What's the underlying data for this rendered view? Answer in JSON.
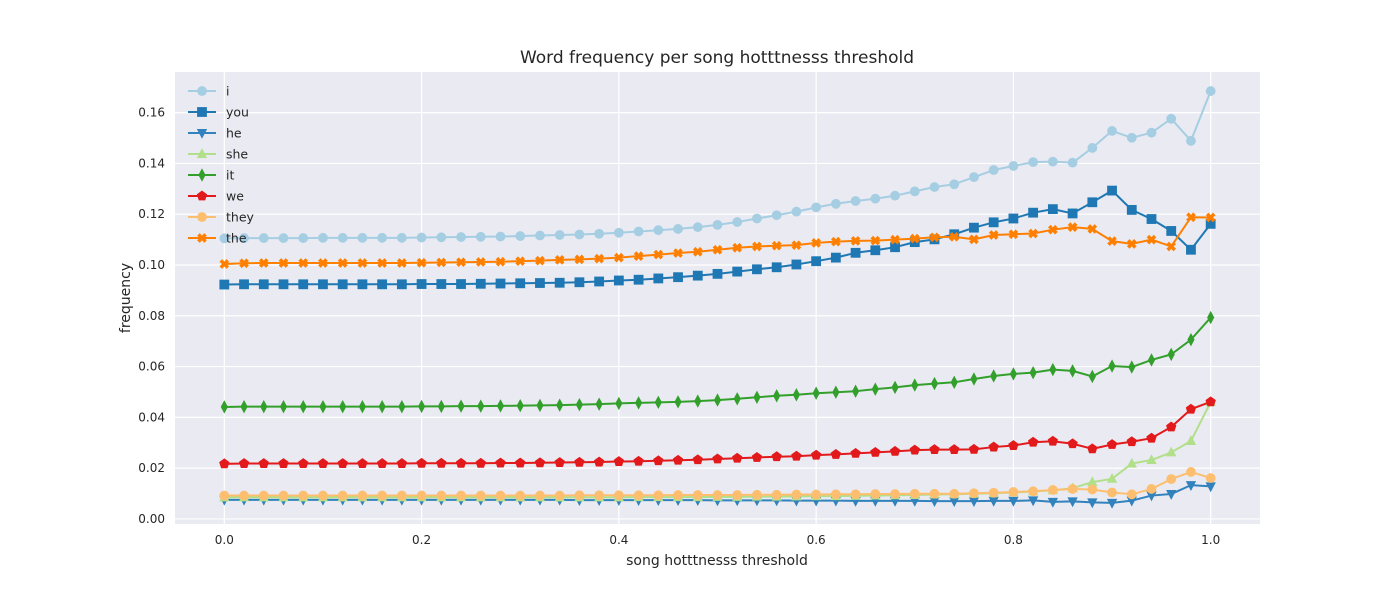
{
  "chart_data": {
    "type": "line",
    "title": "Word frequency per song hotttnesss threshold",
    "xlabel": "song hotttnesss threshold",
    "ylabel": "frequency",
    "xlim": [
      -0.05,
      1.05
    ],
    "ylim": [
      -0.002,
      0.176
    ],
    "xticks": [
      0.0,
      0.2,
      0.4,
      0.6,
      0.8,
      1.0
    ],
    "xtick_labels": [
      "0.0",
      "0.2",
      "0.4",
      "0.6",
      "0.8",
      "1.0"
    ],
    "yticks": [
      0.0,
      0.02,
      0.04,
      0.06,
      0.08,
      0.1,
      0.12,
      0.14,
      0.16
    ],
    "ytick_labels": [
      "0.00",
      "0.02",
      "0.04",
      "0.06",
      "0.08",
      "0.10",
      "0.12",
      "0.14",
      "0.16"
    ],
    "grid": true,
    "legend_position": "top-left",
    "background": "#eaeaf2",
    "x": [
      0.0,
      0.02,
      0.04,
      0.06,
      0.08,
      0.1,
      0.12,
      0.14,
      0.16,
      0.18,
      0.2,
      0.22,
      0.24,
      0.26,
      0.28,
      0.3,
      0.32,
      0.34,
      0.36,
      0.38,
      0.4,
      0.42,
      0.44,
      0.46,
      0.48,
      0.5,
      0.52,
      0.54,
      0.56,
      0.58,
      0.6,
      0.62,
      0.64,
      0.66,
      0.68,
      0.7,
      0.72,
      0.74,
      0.76,
      0.78,
      0.8,
      0.82,
      0.84,
      0.86,
      0.88,
      0.9,
      0.92,
      0.94,
      0.96,
      0.98,
      1.0
    ],
    "series": [
      {
        "name": "i",
        "color": "#a6cee3",
        "marker": "circle",
        "values": [
          0.1105,
          0.1106,
          0.1106,
          0.1106,
          0.1106,
          0.1107,
          0.1107,
          0.1107,
          0.1107,
          0.1107,
          0.1108,
          0.1109,
          0.111,
          0.1111,
          0.1112,
          0.1114,
          0.1116,
          0.1118,
          0.112,
          0.1123,
          0.1127,
          0.1132,
          0.1137,
          0.1142,
          0.1149,
          0.1158,
          0.1169,
          0.1183,
          0.1196,
          0.121,
          0.1227,
          0.1241,
          0.1252,
          0.1261,
          0.1273,
          0.129,
          0.1307,
          0.1318,
          0.1346,
          0.1374,
          0.139,
          0.1405,
          0.1407,
          0.1403,
          0.1461,
          0.1528,
          0.1501,
          0.1521,
          0.1576,
          0.1489,
          0.1685
        ]
      },
      {
        "name": "you",
        "color": "#1f78b4",
        "marker": "square",
        "values": [
          0.0923,
          0.0924,
          0.0924,
          0.0924,
          0.0924,
          0.0924,
          0.0924,
          0.0924,
          0.0924,
          0.0924,
          0.0925,
          0.0925,
          0.0925,
          0.0926,
          0.0927,
          0.0928,
          0.0929,
          0.093,
          0.0932,
          0.0935,
          0.0939,
          0.0942,
          0.0947,
          0.0952,
          0.0958,
          0.0965,
          0.0974,
          0.0983,
          0.0991,
          0.1002,
          0.1015,
          0.1029,
          0.1048,
          0.1058,
          0.107,
          0.109,
          0.1101,
          0.1121,
          0.1147,
          0.1168,
          0.1183,
          0.1206,
          0.122,
          0.1203,
          0.1247,
          0.1293,
          0.1217,
          0.1181,
          0.1134,
          0.106,
          0.1162
        ]
      },
      {
        "name": "he",
        "color": "#3182bd",
        "marker": "triangle-down",
        "values": [
          0.0075,
          0.0075,
          0.0075,
          0.0075,
          0.0075,
          0.0075,
          0.0075,
          0.0075,
          0.0075,
          0.0075,
          0.0075,
          0.0075,
          0.0075,
          0.0075,
          0.0075,
          0.0075,
          0.0075,
          0.0075,
          0.0074,
          0.0074,
          0.0074,
          0.0074,
          0.0074,
          0.0074,
          0.0074,
          0.0073,
          0.0073,
          0.0073,
          0.0073,
          0.0072,
          0.0072,
          0.0072,
          0.0071,
          0.0071,
          0.0071,
          0.0071,
          0.007,
          0.007,
          0.007,
          0.0071,
          0.0071,
          0.0073,
          0.0067,
          0.0069,
          0.0065,
          0.0063,
          0.0072,
          0.0092,
          0.0098,
          0.0133,
          0.0128
        ]
      },
      {
        "name": "she",
        "color": "#b2df8a",
        "marker": "triangle-up",
        "values": [
          0.0085,
          0.0085,
          0.0085,
          0.0085,
          0.0085,
          0.0085,
          0.0085,
          0.0085,
          0.0085,
          0.0085,
          0.0085,
          0.0085,
          0.0085,
          0.0085,
          0.0085,
          0.0085,
          0.0085,
          0.0085,
          0.0085,
          0.0085,
          0.0085,
          0.0086,
          0.0086,
          0.0086,
          0.0086,
          0.0087,
          0.0087,
          0.0088,
          0.0088,
          0.0089,
          0.009,
          0.009,
          0.0091,
          0.0092,
          0.0093,
          0.0094,
          0.0096,
          0.0097,
          0.0099,
          0.0101,
          0.0104,
          0.0108,
          0.0113,
          0.0121,
          0.0145,
          0.0158,
          0.0218,
          0.0232,
          0.0262,
          0.0307,
          0.046
        ]
      },
      {
        "name": "it",
        "color": "#33a02c",
        "marker": "diamond",
        "values": [
          0.0441,
          0.0442,
          0.0442,
          0.0442,
          0.0442,
          0.0442,
          0.0442,
          0.0442,
          0.0442,
          0.0442,
          0.0443,
          0.0443,
          0.0444,
          0.0444,
          0.0445,
          0.0446,
          0.0447,
          0.0448,
          0.045,
          0.0452,
          0.0455,
          0.0457,
          0.0459,
          0.0461,
          0.0464,
          0.0468,
          0.0473,
          0.0479,
          0.0485,
          0.0489,
          0.0495,
          0.0499,
          0.0503,
          0.0511,
          0.0518,
          0.0527,
          0.0533,
          0.0538,
          0.0551,
          0.0563,
          0.0571,
          0.0576,
          0.0588,
          0.0583,
          0.0561,
          0.0602,
          0.0598,
          0.0626,
          0.0648,
          0.0706,
          0.0793
        ]
      },
      {
        "name": "we",
        "color": "#e31a1c",
        "marker": "pentagon",
        "values": [
          0.0217,
          0.0218,
          0.0218,
          0.0218,
          0.0218,
          0.0218,
          0.0218,
          0.0218,
          0.0218,
          0.0218,
          0.0219,
          0.0219,
          0.0219,
          0.0219,
          0.022,
          0.022,
          0.0221,
          0.0222,
          0.0223,
          0.0224,
          0.0226,
          0.0227,
          0.0229,
          0.0231,
          0.0233,
          0.0236,
          0.0239,
          0.0242,
          0.0245,
          0.0247,
          0.0251,
          0.0254,
          0.0258,
          0.0262,
          0.0266,
          0.0271,
          0.0273,
          0.0273,
          0.0274,
          0.0283,
          0.0289,
          0.0302,
          0.0306,
          0.0296,
          0.0276,
          0.0293,
          0.0304,
          0.0318,
          0.0362,
          0.0432,
          0.0461
        ]
      },
      {
        "name": "they",
        "color": "#fdbf6f",
        "marker": "circle",
        "values": [
          0.0092,
          0.0092,
          0.0092,
          0.0092,
          0.0092,
          0.0092,
          0.0092,
          0.0092,
          0.0092,
          0.0092,
          0.0092,
          0.0092,
          0.0092,
          0.0092,
          0.0092,
          0.0092,
          0.0092,
          0.0092,
          0.0093,
          0.0093,
          0.0093,
          0.0093,
          0.0093,
          0.0094,
          0.0094,
          0.0094,
          0.0094,
          0.0095,
          0.0095,
          0.0096,
          0.0096,
          0.0097,
          0.0097,
          0.0098,
          0.0098,
          0.0099,
          0.0099,
          0.0099,
          0.0101,
          0.0103,
          0.0106,
          0.0109,
          0.0114,
          0.0118,
          0.0116,
          0.0104,
          0.0097,
          0.0118,
          0.0157,
          0.0185,
          0.0161
        ]
      },
      {
        "name": "the",
        "color": "#ff7f00",
        "marker": "x",
        "values": [
          0.1004,
          0.1007,
          0.1008,
          0.1008,
          0.1008,
          0.1008,
          0.1008,
          0.1008,
          0.1008,
          0.1008,
          0.1009,
          0.101,
          0.1011,
          0.1012,
          0.1013,
          0.1015,
          0.1017,
          0.102,
          0.1022,
          0.1025,
          0.1029,
          0.1035,
          0.1041,
          0.1047,
          0.1052,
          0.106,
          0.1068,
          0.1073,
          0.1076,
          0.1078,
          0.1087,
          0.1092,
          0.1095,
          0.1096,
          0.11,
          0.1104,
          0.1109,
          0.1111,
          0.1101,
          0.1118,
          0.1121,
          0.1124,
          0.1139,
          0.1149,
          0.1142,
          0.1094,
          0.1083,
          0.11,
          0.1073,
          0.1188,
          0.1187
        ]
      }
    ]
  }
}
